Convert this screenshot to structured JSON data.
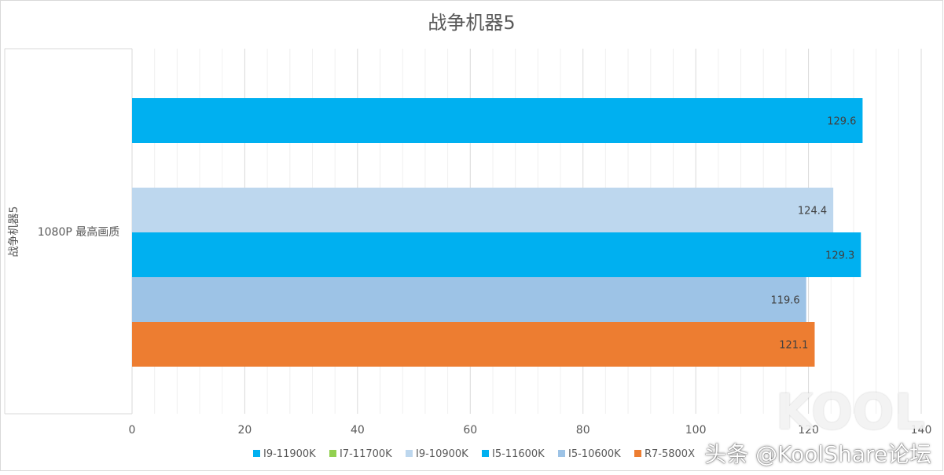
{
  "chart_data": {
    "type": "bar",
    "orientation": "horizontal",
    "title": "战争机器5",
    "group_axis_label": "战争机器5",
    "categories": [
      "1080P 最高画质"
    ],
    "xlim": [
      0,
      140
    ],
    "x_ticks": [
      0,
      20,
      40,
      60,
      80,
      100,
      120,
      140
    ],
    "grid": true,
    "legend_position": "bottom",
    "series": [
      {
        "name": "I9-11900K",
        "color": "#00B0F0",
        "values": [
          129.6
        ],
        "label": "129.6"
      },
      {
        "name": "I7-11700K",
        "color": "#92D050",
        "values": [
          null
        ],
        "label": ""
      },
      {
        "name": "I9-10900K",
        "color": "#BDD7EE",
        "values": [
          124.4
        ],
        "label": "124.4"
      },
      {
        "name": "I5-11600K",
        "color": "#00B0F0",
        "values": [
          129.3
        ],
        "label": "129.3"
      },
      {
        "name": "I5-10600K",
        "color": "#9DC3E6",
        "values": [
          119.6
        ],
        "label": "119.6"
      },
      {
        "name": "R7-5800X",
        "color": "#ED7D31",
        "values": [
          121.1
        ],
        "label": "121.1"
      }
    ]
  },
  "watermark": {
    "text": "头条 @KoolShare论坛",
    "logo": "KOOL"
  }
}
